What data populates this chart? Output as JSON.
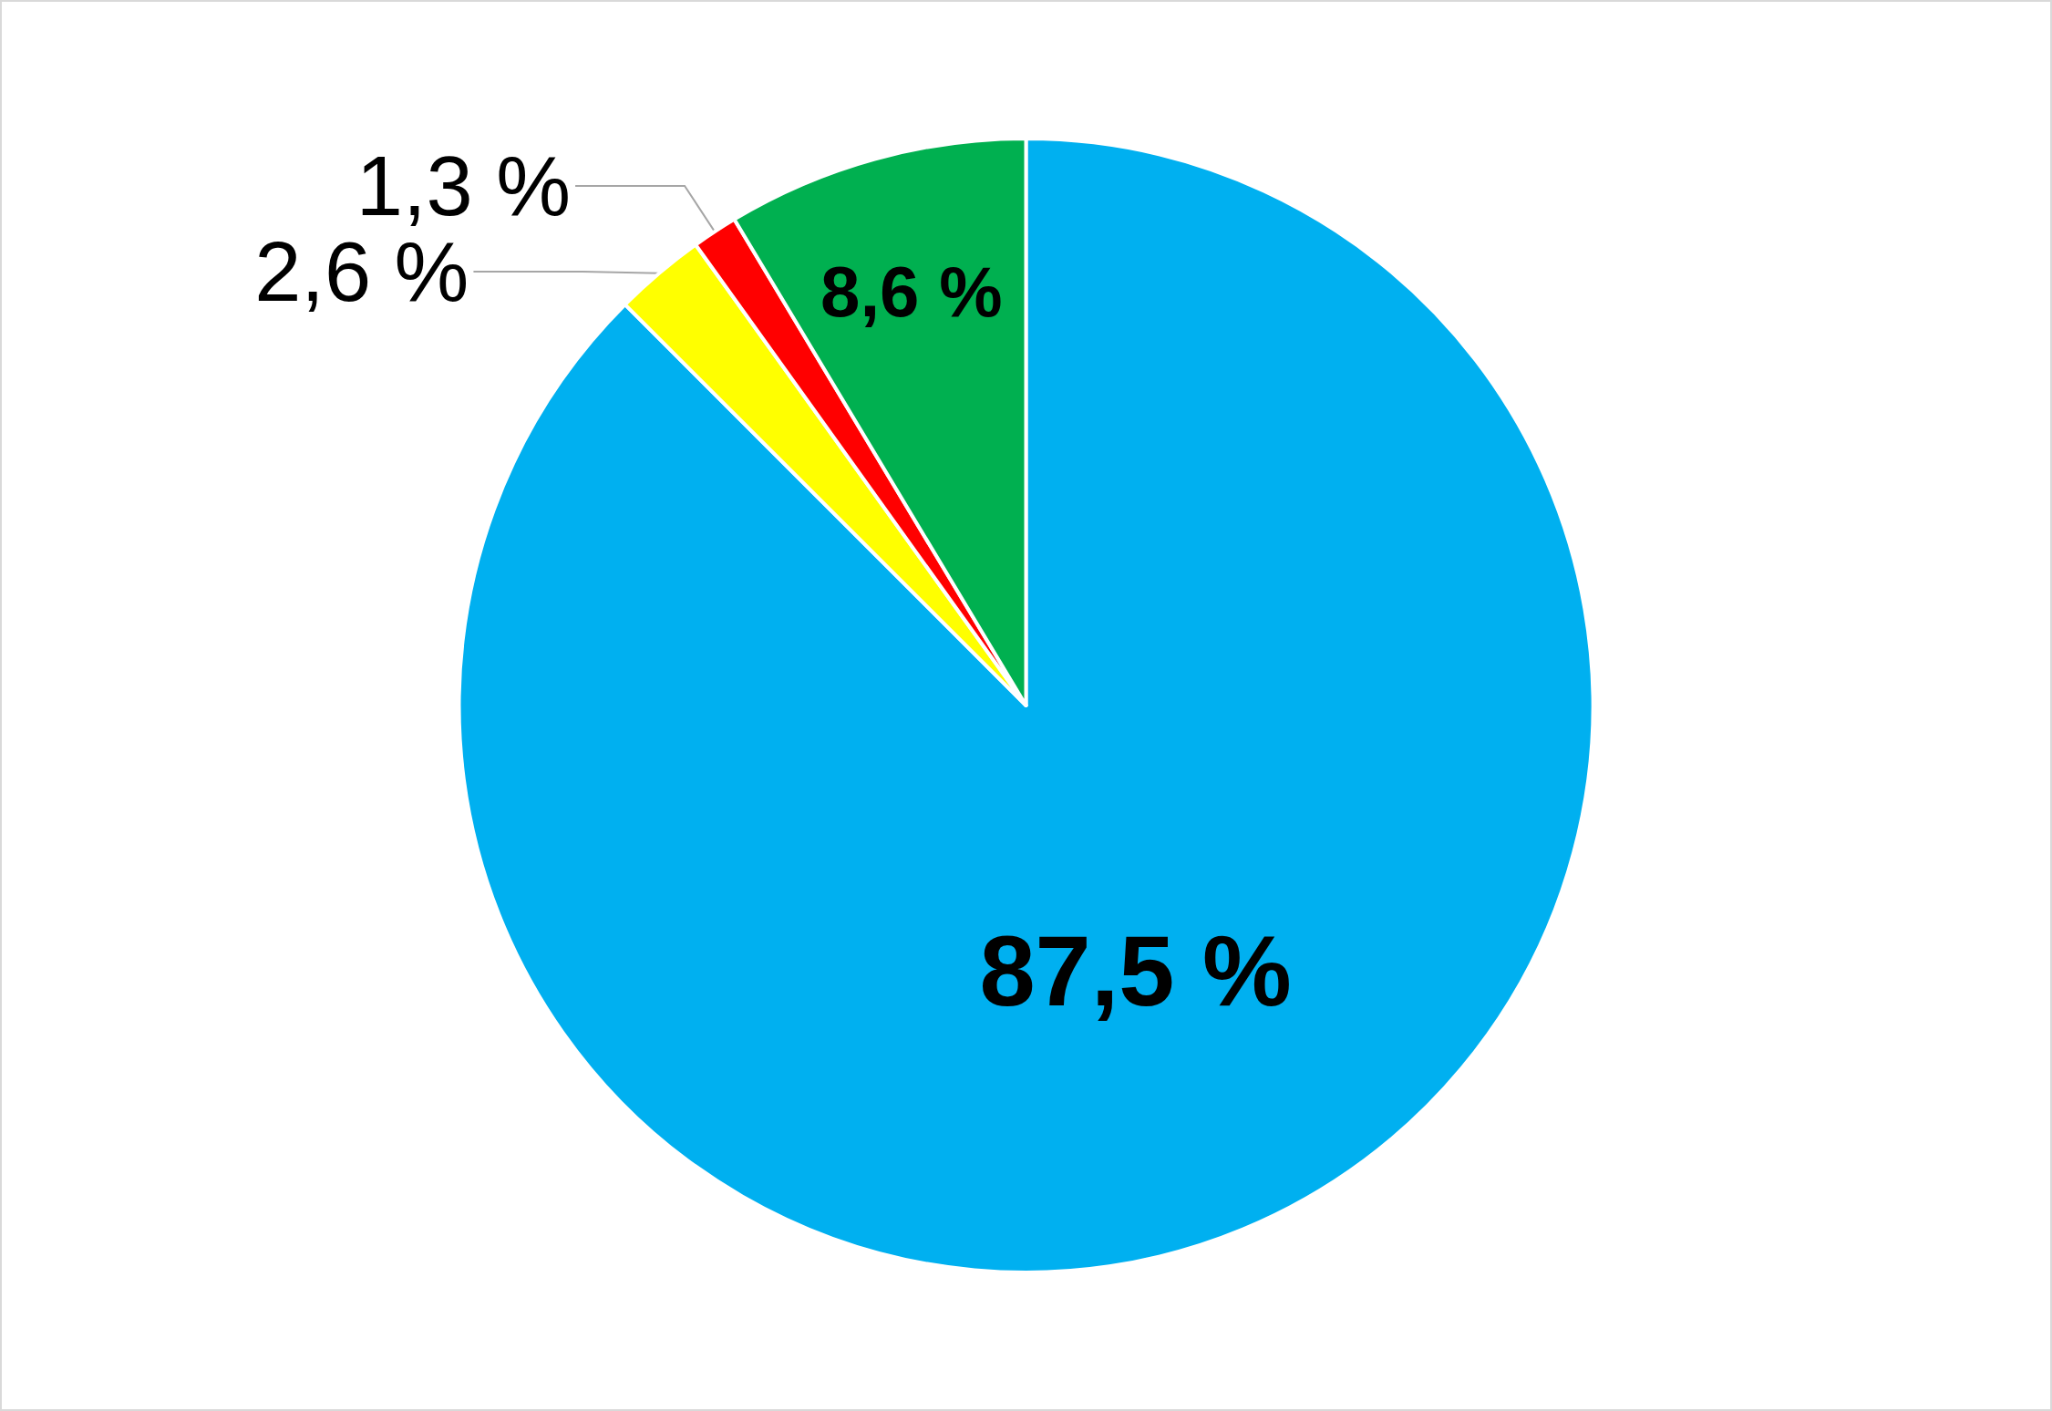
{
  "chart_data": {
    "type": "pie",
    "categories": [
      null,
      null,
      null,
      null
    ],
    "values": [
      87.5,
      2.6,
      1.3,
      8.6
    ],
    "colors": [
      "#00b0f0",
      "#ffff00",
      "#ff0000",
      "#00b050"
    ],
    "value_labels": [
      "87,5 %",
      "2,6 %",
      "1,3 %",
      "8,6 %"
    ]
  }
}
